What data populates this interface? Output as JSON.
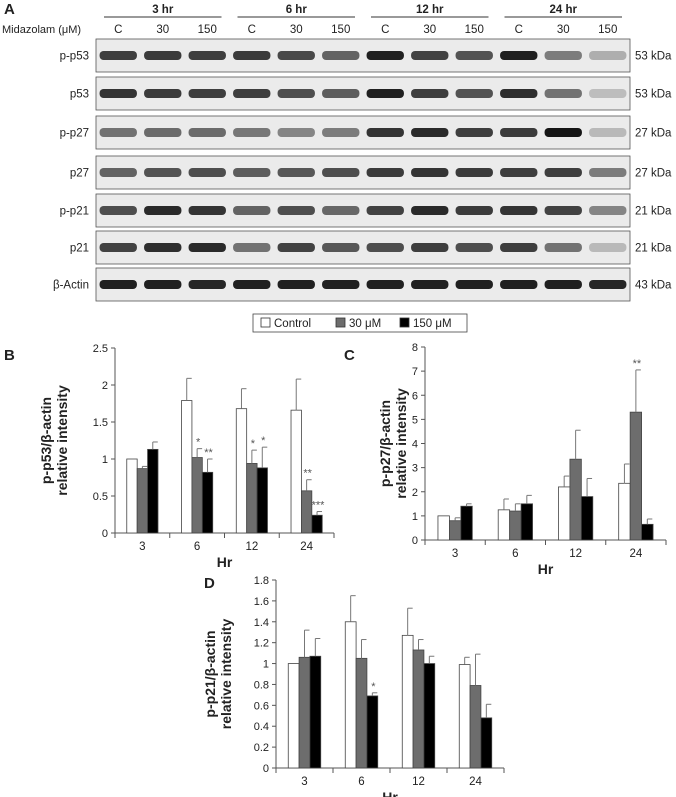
{
  "panel_labels": {
    "a": "A",
    "b": "B",
    "c": "C",
    "d": "D"
  },
  "blot": {
    "treatment_label": "Midazolam (μM)",
    "time_groups": [
      {
        "time": "3 hr",
        "lanes": [
          "C",
          "30",
          "150"
        ]
      },
      {
        "time": "6 hr",
        "lanes": [
          "C",
          "30",
          "150"
        ]
      },
      {
        "time": "12 hr",
        "lanes": [
          "C",
          "30",
          "150"
        ]
      },
      {
        "time": "24 hr",
        "lanes": [
          "C",
          "30",
          "150"
        ]
      }
    ],
    "rows": [
      {
        "label": "p-p53",
        "size": "53 kDa",
        "intensity": [
          0.8,
          0.82,
          0.8,
          0.82,
          0.75,
          0.62,
          0.95,
          0.78,
          0.7,
          0.95,
          0.5,
          0.25
        ]
      },
      {
        "label": "p53",
        "size": "53 kDa",
        "intensity": [
          0.85,
          0.82,
          0.8,
          0.8,
          0.72,
          0.65,
          0.95,
          0.8,
          0.7,
          0.88,
          0.55,
          0.18
        ]
      },
      {
        "label": "p-p27",
        "size": "27 kDa",
        "intensity": [
          0.55,
          0.58,
          0.58,
          0.52,
          0.45,
          0.5,
          0.85,
          0.9,
          0.8,
          0.82,
          1.0,
          0.2
        ]
      },
      {
        "label": "p27",
        "size": "27 kDa",
        "intensity": [
          0.62,
          0.7,
          0.72,
          0.65,
          0.68,
          0.72,
          0.82,
          0.85,
          0.82,
          0.8,
          0.8,
          0.5
        ]
      },
      {
        "label": "p-p21",
        "size": "21 kDa",
        "intensity": [
          0.72,
          0.9,
          0.85,
          0.62,
          0.72,
          0.6,
          0.78,
          0.9,
          0.82,
          0.85,
          0.78,
          0.45
        ]
      },
      {
        "label": "p21",
        "size": "21 kDa",
        "intensity": [
          0.78,
          0.88,
          0.9,
          0.55,
          0.78,
          0.68,
          0.72,
          0.8,
          0.72,
          0.8,
          0.55,
          0.2
        ]
      },
      {
        "label": "β-Actin",
        "size": "43 kDa",
        "intensity": [
          0.95,
          0.95,
          0.92,
          0.95,
          0.95,
          0.95,
          0.95,
          0.95,
          0.95,
          0.95,
          0.95,
          0.92
        ]
      }
    ]
  },
  "legend": {
    "items": [
      {
        "name": "Control",
        "color": "#ffffff"
      },
      {
        "name": "30 μM",
        "color": "#6d6d6d"
      },
      {
        "name": "150 μM",
        "color": "#000000"
      }
    ]
  },
  "chart_data": [
    {
      "panel": "B",
      "type": "bar",
      "xlabel": "Hr",
      "ylabel": [
        "p-p53/β-actin",
        "relative intensity"
      ],
      "categories": [
        "3",
        "6",
        "12",
        "24"
      ],
      "ylim": [
        0,
        2.5
      ],
      "yticks": [
        "0",
        "0.5",
        "1",
        "1.5",
        "2",
        "2.5"
      ],
      "series": [
        {
          "name": "Control",
          "values": [
            1.0,
            1.79,
            1.68,
            1.66
          ],
          "errors": [
            0.0,
            0.3,
            0.27,
            0.42
          ],
          "sig": [
            "",
            "",
            "",
            ""
          ]
        },
        {
          "name": "30 μM",
          "values": [
            0.87,
            1.02,
            0.94,
            0.57
          ],
          "errors": [
            0.03,
            0.12,
            0.18,
            0.15
          ],
          "sig": [
            "",
            "*",
            "*",
            "**"
          ]
        },
        {
          "name": "150 μM",
          "values": [
            1.13,
            0.82,
            0.88,
            0.24
          ],
          "errors": [
            0.1,
            0.18,
            0.28,
            0.05
          ],
          "sig": [
            "",
            "**",
            "*",
            "***"
          ]
        }
      ]
    },
    {
      "panel": "C",
      "type": "bar",
      "xlabel": "Hr",
      "ylabel": [
        "p-p27/β-actin",
        "relative intensity"
      ],
      "categories": [
        "3",
        "6",
        "12",
        "24"
      ],
      "ylim": [
        0,
        8
      ],
      "yticks": [
        "0",
        "1",
        "2",
        "3",
        "4",
        "5",
        "6",
        "7",
        "8"
      ],
      "series": [
        {
          "name": "Control",
          "values": [
            1.0,
            1.25,
            2.2,
            2.35
          ],
          "errors": [
            0.0,
            0.45,
            0.45,
            0.8
          ],
          "sig": [
            "",
            "",
            "",
            ""
          ]
        },
        {
          "name": "30 μM",
          "values": [
            0.8,
            1.2,
            3.35,
            5.3
          ],
          "errors": [
            0.12,
            0.3,
            1.2,
            1.75
          ],
          "sig": [
            "",
            "",
            "",
            "**"
          ]
        },
        {
          "name": "150 μM",
          "values": [
            1.4,
            1.5,
            1.8,
            0.65
          ],
          "errors": [
            0.1,
            0.35,
            0.75,
            0.22
          ],
          "sig": [
            "",
            "",
            "",
            ""
          ]
        }
      ]
    },
    {
      "panel": "D",
      "type": "bar",
      "xlabel": "Hr",
      "ylabel": [
        "p-p21/β-actin",
        "relative intensity"
      ],
      "categories": [
        "3",
        "6",
        "12",
        "24"
      ],
      "ylim": [
        0,
        1.8
      ],
      "yticks": [
        "0",
        "0.2",
        "0.4",
        "0.6",
        "0.8",
        "1",
        "1.2",
        "1.4",
        "1.6",
        "1.8"
      ],
      "series": [
        {
          "name": "Control",
          "values": [
            1.0,
            1.4,
            1.27,
            0.99
          ],
          "errors": [
            0.0,
            0.25,
            0.26,
            0.07
          ],
          "sig": [
            "",
            "",
            "",
            ""
          ]
        },
        {
          "name": "30 μM",
          "values": [
            1.06,
            1.05,
            1.13,
            0.79
          ],
          "errors": [
            0.26,
            0.18,
            0.1,
            0.3
          ],
          "sig": [
            "",
            "",
            "",
            ""
          ]
        },
        {
          "name": "150 μM",
          "values": [
            1.07,
            0.69,
            1.0,
            0.48
          ],
          "errors": [
            0.17,
            0.03,
            0.07,
            0.13
          ],
          "sig": [
            "",
            "*",
            "",
            ""
          ]
        }
      ]
    }
  ]
}
